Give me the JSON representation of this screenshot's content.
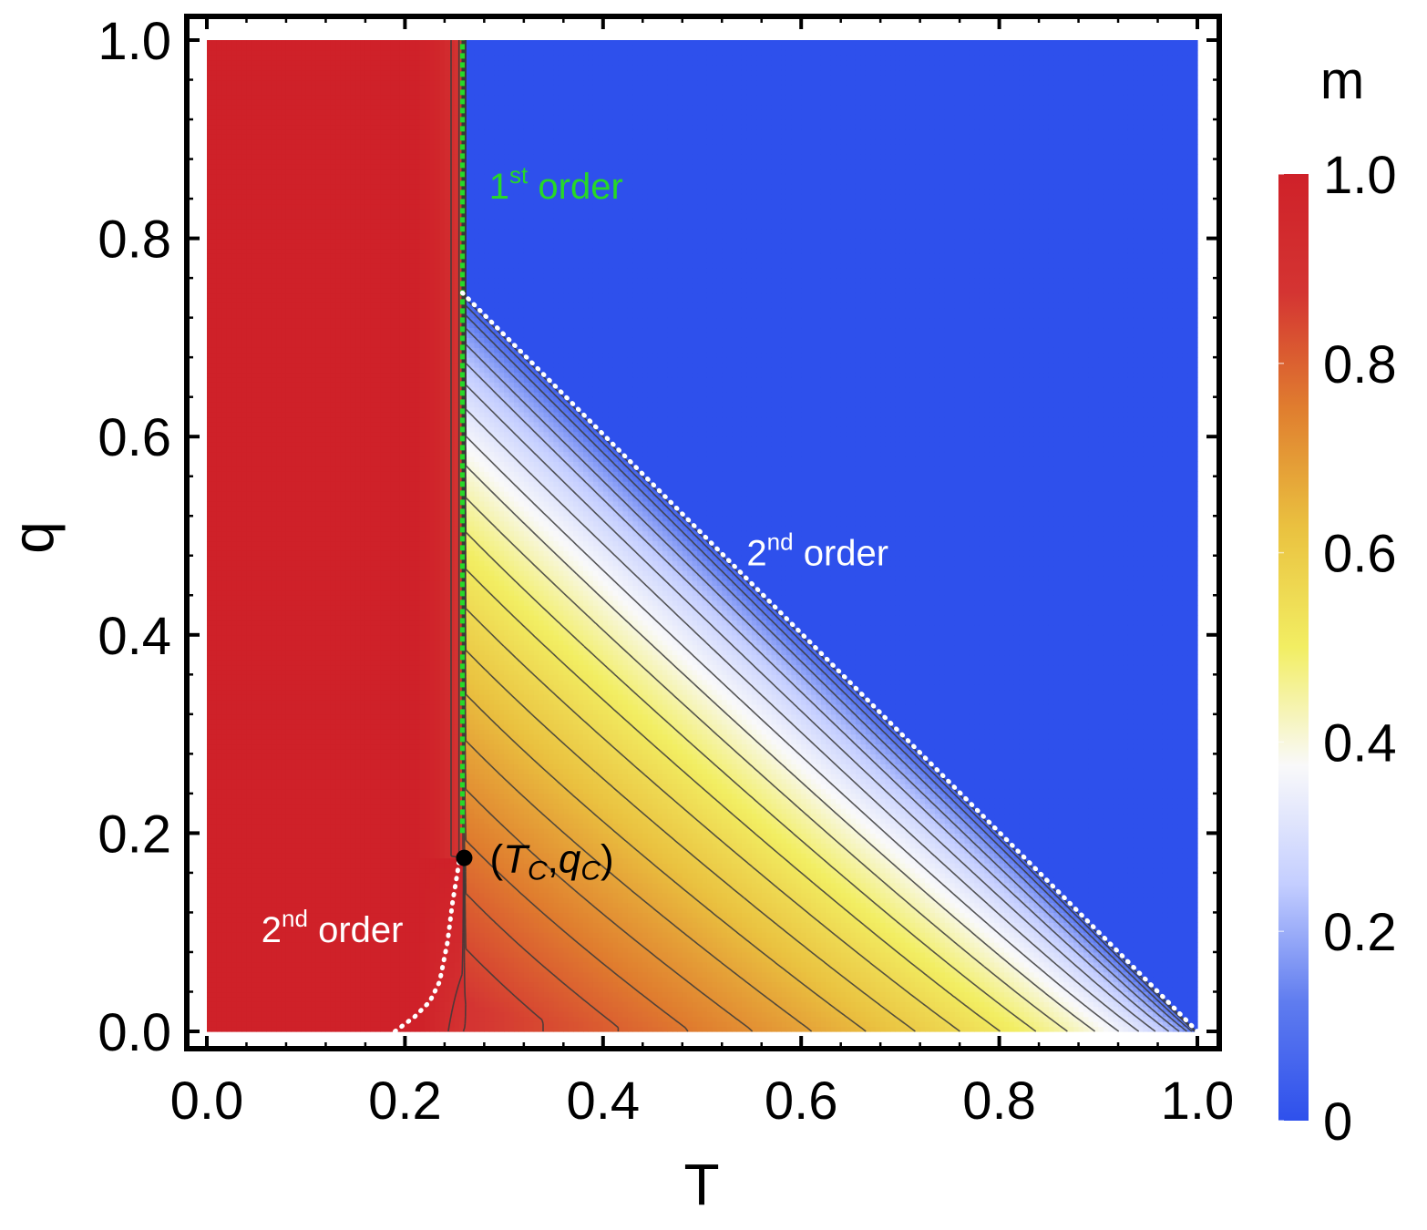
{
  "chart_data": {
    "type": "heatmap",
    "xlabel": "T",
    "ylabel": "q",
    "xlim": [
      0,
      1
    ],
    "ylim": [
      0,
      1
    ],
    "x_ticks": [
      "0.0",
      "0.2",
      "0.4",
      "0.6",
      "0.8",
      "1.0"
    ],
    "y_ticks": [
      "0.0",
      "0.2",
      "0.4",
      "0.6",
      "0.8",
      "1.0"
    ],
    "colorbar": {
      "label": "m",
      "range": [
        0,
        1
      ],
      "ticks": [
        "0",
        "0.2",
        "0.4",
        "0.6",
        "0.8",
        "1.0"
      ],
      "colors": [
        "#2e50ec",
        "#5f7cef",
        "#c4ceff",
        "#f9f9fa",
        "#f2ee63",
        "#eac240",
        "#e07f2f",
        "#d43432",
        "#cf2129"
      ]
    },
    "contour_levels": [
      0.04,
      0.08,
      0.12,
      0.16,
      0.2,
      0.24,
      0.28,
      0.32,
      0.36,
      0.4,
      0.44,
      0.48,
      0.52,
      0.56,
      0.6,
      0.64,
      0.68,
      0.72,
      0.76,
      0.8,
      0.84,
      0.88,
      0.92
    ],
    "first_order_line": {
      "label": "1st order",
      "color": "#27d827",
      "x": [
        0.258,
        0.258
      ],
      "y": [
        0.2,
        1.0
      ]
    },
    "second_order_line_low": {
      "label": "2nd order",
      "color": "#ffffff",
      "points": [
        [
          0.19,
          0.0
        ],
        [
          0.21,
          0.015
        ],
        [
          0.225,
          0.03
        ],
        [
          0.235,
          0.05
        ],
        [
          0.243,
          0.09
        ],
        [
          0.248,
          0.13
        ],
        [
          0.253,
          0.16
        ],
        [
          0.255,
          0.175
        ]
      ]
    },
    "second_order_line_high": {
      "label": "2nd order",
      "color": "#ffffff",
      "points": [
        [
          0.258,
          0.745
        ],
        [
          1.0,
          0.0
        ]
      ]
    },
    "critical_point": {
      "label": "(T_C,q_C)",
      "x": 0.258,
      "y": 0.175
    },
    "annotations": [
      {
        "text": "1",
        "sup": "st",
        "rest": " order",
        "color": "#27d827",
        "x": 0.285,
        "y": 0.84
      },
      {
        "text": "2",
        "sup": "nd",
        "rest": " order",
        "color": "#ffffff",
        "x": 0.545,
        "y": 0.47
      },
      {
        "text": "2",
        "sup": "nd",
        "rest": " order",
        "color": "#ffffff",
        "x": 0.055,
        "y": 0.09
      }
    ]
  }
}
